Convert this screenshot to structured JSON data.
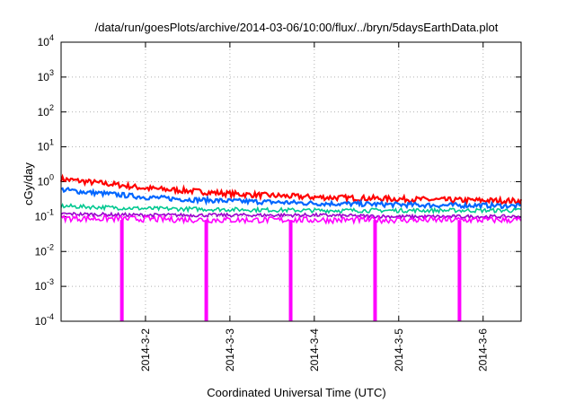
{
  "chart_data": {
    "type": "line",
    "title": "/data/run/goesPlots/archive/2014-03-06/10:00/flux/../bryn/5daysEarthData.plot",
    "xlabel": "Coordinated Universal Time (UTC)",
    "ylabel": "cGy/day",
    "xlim": [
      1.0,
      6.45
    ],
    "ylim": [
      0.0001,
      10000
    ],
    "yscale": "log",
    "grid": true,
    "x_ticks": [
      {
        "value": 2.0,
        "label": "2014-3-2"
      },
      {
        "value": 3.0,
        "label": "2014-3-3"
      },
      {
        "value": 4.0,
        "label": "2014-3-4"
      },
      {
        "value": 5.0,
        "label": "2014-3-5"
      },
      {
        "value": 6.0,
        "label": "2014-3-6"
      }
    ],
    "y_ticks": [
      {
        "value": 0.0001,
        "base": "10",
        "exp": "-4"
      },
      {
        "value": 0.001,
        "base": "10",
        "exp": "-3"
      },
      {
        "value": 0.01,
        "base": "10",
        "exp": "-2"
      },
      {
        "value": 0.1,
        "base": "10",
        "exp": "-1"
      },
      {
        "value": 1,
        "base": "10",
        "exp": "0"
      },
      {
        "value": 10,
        "base": "10",
        "exp": "1"
      },
      {
        "value": 100,
        "base": "10",
        "exp": "2"
      },
      {
        "value": 1000,
        "base": "10",
        "exp": "3"
      },
      {
        "value": 10000,
        "base": "10",
        "exp": "4"
      }
    ],
    "dropouts": [
      1.72,
      2.72,
      3.72,
      4.72,
      5.72
    ],
    "series": [
      {
        "color": "#ff0000",
        "x": [
          1.0,
          1.3,
          1.7,
          2.0,
          2.5,
          3.0,
          3.5,
          4.0,
          4.5,
          5.0,
          5.5,
          6.0,
          6.45
        ],
        "values": [
          1.2,
          1.0,
          0.8,
          0.65,
          0.55,
          0.45,
          0.4,
          0.36,
          0.34,
          0.32,
          0.3,
          0.29,
          0.28
        ],
        "noise": 0.08
      },
      {
        "color": "#0066ff",
        "x": [
          1.0,
          1.3,
          1.7,
          2.0,
          2.5,
          3.0,
          3.5,
          4.0,
          4.5,
          5.0,
          5.5,
          6.0,
          6.45
        ],
        "values": [
          0.6,
          0.5,
          0.42,
          0.36,
          0.31,
          0.28,
          0.26,
          0.24,
          0.23,
          0.22,
          0.21,
          0.21,
          0.2
        ],
        "noise": 0.07
      },
      {
        "color": "#00c890",
        "x": [
          1.0,
          2.0,
          3.0,
          4.0,
          5.0,
          6.0,
          6.45
        ],
        "values": [
          0.2,
          0.17,
          0.16,
          0.15,
          0.15,
          0.15,
          0.15
        ],
        "noise": 0.06
      },
      {
        "color": "#9900cc",
        "x": [
          1.0,
          2.0,
          3.0,
          4.0,
          5.0,
          6.0,
          6.45
        ],
        "values": [
          0.12,
          0.11,
          0.11,
          0.11,
          0.1,
          0.1,
          0.1
        ],
        "noise": 0.05
      },
      {
        "color": "#ff00ff",
        "x": [
          1.0,
          2.0,
          3.0,
          4.0,
          5.0,
          6.0,
          6.45
        ],
        "values": [
          0.09,
          0.085,
          0.08,
          0.08,
          0.08,
          0.08,
          0.08
        ],
        "noise": 0.09
      }
    ]
  }
}
